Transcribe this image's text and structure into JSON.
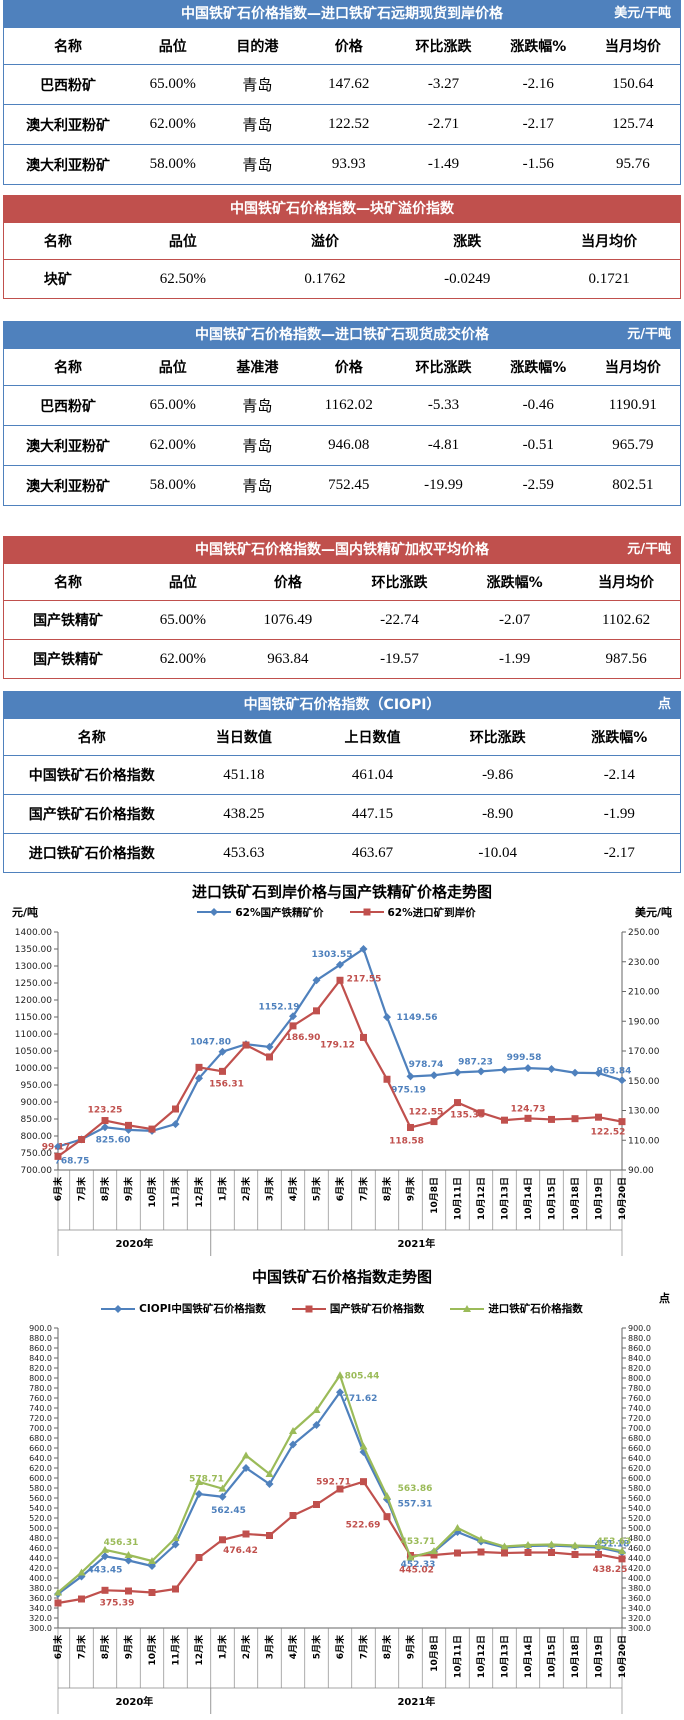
{
  "tables": [
    {
      "theme": "blue",
      "title": "中国铁矿石价格指数—进口铁矿石远期现货到岸价格",
      "unit": "美元/干吨",
      "headers": [
        "名称",
        "品位",
        "目的港",
        "价格",
        "环比涨跌",
        "涨跌幅%",
        "当月均价"
      ],
      "rows": [
        [
          "巴西粉矿",
          "65.00%",
          "青岛",
          "147.62",
          "-3.27",
          "-2.16",
          "150.64"
        ],
        [
          "澳大利亚粉矿",
          "62.00%",
          "青岛",
          "122.52",
          "-2.71",
          "-2.17",
          "125.74"
        ],
        [
          "澳大利亚粉矿",
          "58.00%",
          "青岛",
          "93.93",
          "-1.49",
          "-1.56",
          "95.76"
        ]
      ]
    },
    {
      "theme": "red",
      "title": "中国铁矿石价格指数—块矿溢价指数",
      "unit": "",
      "headers": [
        "名称",
        "品位",
        "溢价",
        "涨跌",
        "当月均价"
      ],
      "rows": [
        [
          "块矿",
          "62.50%",
          "0.1762",
          "-0.0249",
          "0.1721"
        ]
      ]
    },
    {
      "theme": "blue",
      "title": "中国铁矿石价格指数—进口铁矿石现货成交价格",
      "unit": "元/干吨",
      "headers": [
        "名称",
        "品位",
        "基准港",
        "价格",
        "环比涨跌",
        "涨跌幅%",
        "当月均价"
      ],
      "rows": [
        [
          "巴西粉矿",
          "65.00%",
          "青岛",
          "1162.02",
          "-5.33",
          "-0.46",
          "1190.91"
        ],
        [
          "澳大利亚粉矿",
          "62.00%",
          "青岛",
          "946.08",
          "-4.81",
          "-0.51",
          "965.79"
        ],
        [
          "澳大利亚粉矿",
          "58.00%",
          "青岛",
          "752.45",
          "-19.99",
          "-2.59",
          "802.51"
        ]
      ]
    },
    {
      "theme": "red",
      "title": "中国铁矿石价格指数—国内铁精矿加权平均价格",
      "unit": "元/干吨",
      "headers": [
        "名称",
        "品位",
        "价格",
        "环比涨跌",
        "涨跌幅%",
        "当月均价"
      ],
      "rows": [
        [
          "国产铁精矿",
          "65.00%",
          "1076.49",
          "-22.74",
          "-2.07",
          "1102.62"
        ],
        [
          "国产铁精矿",
          "62.00%",
          "963.84",
          "-19.57",
          "-1.99",
          "987.56"
        ]
      ]
    },
    {
      "theme": "blue",
      "title": "中国铁矿石价格指数（CIOPI）",
      "unit": "点",
      "headers": [
        "名称",
        "当日数值",
        "上日数值",
        "环比涨跌",
        "涨跌幅%"
      ],
      "rows": [
        [
          "中国铁矿石价格指数",
          "451.18",
          "461.04",
          "-9.86",
          "-2.14"
        ],
        [
          "国产铁矿石价格指数",
          "438.25",
          "447.15",
          "-8.90",
          "-1.99"
        ],
        [
          "进口铁矿石价格指数",
          "453.63",
          "463.67",
          "-10.04",
          "-2.17"
        ]
      ]
    }
  ],
  "chart_data": [
    {
      "type": "line",
      "title": "进口铁矿石到岸价格与国产铁精矿价格走势图",
      "grid": false,
      "legend_position": "top",
      "axes": {
        "left": {
          "label": "元/吨",
          "min": 700,
          "max": 1400,
          "step": 50,
          "decimals": 2
        },
        "right": {
          "label": "美元/吨",
          "min": 90,
          "max": 250,
          "step": 20,
          "decimals": 2
        }
      },
      "categories": [
        "6月末",
        "7月末",
        "8月末",
        "9月末",
        "10月末",
        "11月末",
        "12月末",
        "1月末",
        "2月末",
        "3月末",
        "4月末",
        "5月末",
        "6月末",
        "7月末",
        "8月末",
        "9月末",
        "10月8日",
        "10月11日",
        "10月12日",
        "10月13日",
        "10月14日",
        "10月15日",
        "10月18日",
        "10月19日",
        "10月20日"
      ],
      "year_groups": [
        {
          "label": "2020年",
          "from": 0,
          "to": 6
        },
        {
          "label": "2021年",
          "from": 7,
          "to": 24
        }
      ],
      "series": [
        {
          "name": "62%国产铁精矿价",
          "color": "#4f81bd",
          "marker": "diamond",
          "axis": "left",
          "values": [
            768.75,
            790,
            825.6,
            818,
            815,
            835,
            970,
            1047.8,
            1070,
            1062,
            1152.19,
            1258,
            1303.55,
            1350,
            1149.56,
            975.19,
            978.74,
            987.23,
            990,
            995,
            999.58,
            997,
            986,
            985,
            963.84
          ],
          "labels": {
            "0": [
              "768.75",
              14,
              17
            ],
            "2": [
              "825.60",
              8,
              15
            ],
            "7": [
              "1047.80",
              -12,
              -7
            ],
            "10": [
              "1152.19",
              -14,
              -7
            ],
            "12": [
              "1303.55",
              -8,
              -8
            ],
            "14": [
              "1149.56",
              30,
              3
            ],
            "15": [
              "975.19",
              -2,
              16
            ],
            "16": [
              "978.74",
              -8,
              -8
            ],
            "17": [
              "987.23",
              18,
              -8
            ],
            "20": [
              "999.58",
              -4,
              -8
            ],
            "24": [
              "963.84",
              -8,
              -7
            ]
          }
        },
        {
          "name": "62%进口矿到岸价",
          "color": "#c0504d",
          "marker": "square",
          "axis": "right",
          "values": [
            99.17,
            110.5,
            123.25,
            120,
            117.5,
            131,
            159,
            156.31,
            174,
            166,
            186.9,
            197,
            217.55,
            179.12,
            151,
            118.58,
            122.55,
            135.33,
            128.5,
            123.5,
            124.73,
            124,
            124.5,
            125.5,
            122.52
          ],
          "labels": {
            "0": [
              "99.17",
              -2,
              -7
            ],
            "2": [
              "123.25",
              0,
              -8
            ],
            "7": [
              "156.31",
              4,
              15
            ],
            "10": [
              "186.90",
              10,
              14
            ],
            "12": [
              "217.55",
              24,
              1
            ],
            "13": [
              "179.12",
              -26,
              10
            ],
            "15": [
              "118.58",
              -4,
              16
            ],
            "16": [
              "122.55",
              -8,
              -7
            ],
            "17": [
              "135.33",
              10,
              15
            ],
            "20": [
              "124.73",
              0,
              -7
            ],
            "24": [
              "122.52",
              -14,
              13
            ]
          }
        }
      ]
    },
    {
      "type": "line",
      "title": "中国铁矿石价格指数走势图",
      "grid": false,
      "legend_position": "top",
      "axes": {
        "left": {
          "label": "",
          "min": 300,
          "max": 900,
          "step": 20,
          "decimals": 1
        },
        "right": {
          "label": "点",
          "min": 300,
          "max": 900,
          "step": 20,
          "decimals": 1
        }
      },
      "categories": [
        "6月末",
        "7月末",
        "8月末",
        "9月末",
        "10月末",
        "11月末",
        "12月末",
        "1月末",
        "2月末",
        "3月末",
        "4月末",
        "5月末",
        "6月末",
        "7月末",
        "8月末",
        "9月末",
        "10月8日",
        "10月11日",
        "10月12日",
        "10月13日",
        "10月14日",
        "10月15日",
        "10月18日",
        "10月19日",
        "10月20日"
      ],
      "year_groups": [
        {
          "label": "2020年",
          "from": 0,
          "to": 6
        },
        {
          "label": "2021年",
          "from": 7,
          "to": 24
        }
      ],
      "series": [
        {
          "name": "CIOPI中国铁矿石价格指数",
          "color": "#4f81bd",
          "marker": "diamond",
          "axis": "left",
          "values": [
            368,
            403,
            443.45,
            435,
            424,
            467,
            568,
            562.45,
            620,
            588,
            667,
            706,
            771.62,
            652,
            557.31,
            442,
            452.33,
            492,
            473,
            461,
            464,
            465,
            463,
            461.04,
            451.18
          ],
          "labels": {
            "2": [
              "443.45",
              0,
              16
            ],
            "7": [
              "562.45",
              6,
              16
            ],
            "12": [
              "771.62",
              20,
              9
            ],
            "14": [
              "557.31",
              28,
              7
            ],
            "16": [
              "452.33",
              -16,
              15
            ],
            "24": [
              "451.18",
              -10,
              -6
            ]
          }
        },
        {
          "name": "国产铁矿石价格指数",
          "color": "#c0504d",
          "marker": "square",
          "axis": "left",
          "values": [
            350,
            358,
            375.39,
            374,
            371,
            378,
            441,
            476.42,
            488,
            485,
            525,
            547,
            578,
            592.71,
            522.69,
            445.02,
            446,
            450,
            452,
            450,
            451,
            451,
            447,
            447.15,
            438.25
          ],
          "labels": {
            "2": [
              "375.39",
              12,
              15
            ],
            "7": [
              "476.42",
              18,
              13
            ],
            "13": [
              "592.71",
              -30,
              3
            ],
            "14": [
              "522.69",
              -24,
              11
            ],
            "15": [
              "445.02",
              6,
              17
            ],
            "24": [
              "438.25",
              -12,
              13
            ]
          }
        },
        {
          "name": "进口铁矿石价格指数",
          "color": "#9bbb59",
          "marker": "triangle",
          "axis": "left",
          "values": [
            371,
            411,
            456.31,
            446,
            434,
            480,
            592,
            578.71,
            645,
            608,
            694,
            736,
            805.44,
            663,
            563.86,
            441,
            453.71,
            500,
            477,
            463,
            466,
            467,
            465,
            463.67,
            453.63
          ],
          "labels": {
            "2": [
              "456.31",
              16,
              -5
            ],
            "7": [
              "578.71",
              -16,
              -7
            ],
            "12": [
              "805.44",
              22,
              3
            ],
            "14": [
              "563.86",
              28,
              -5
            ],
            "16": [
              "453.71",
              -16,
              -7
            ],
            "24": [
              "453.63",
              -8,
              -7
            ]
          }
        }
      ]
    }
  ]
}
